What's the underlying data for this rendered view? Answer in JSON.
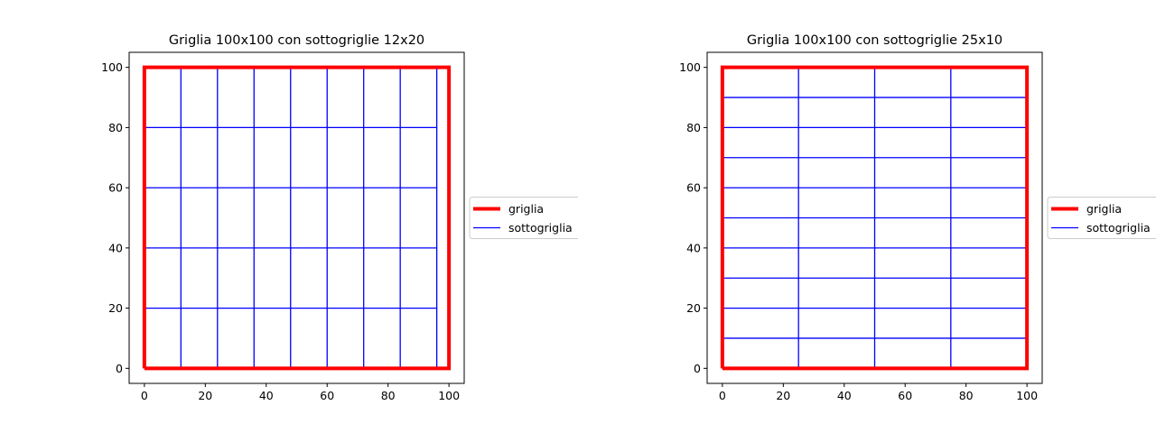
{
  "chart_data": [
    {
      "type": "line",
      "title": "Griglia 100x100 con sottogriglie 12x20",
      "xlim": [
        -5,
        105
      ],
      "ylim": [
        -5,
        105
      ],
      "xticks": [
        0,
        20,
        40,
        60,
        80,
        100
      ],
      "yticks": [
        0,
        20,
        40,
        60,
        80,
        100
      ],
      "grid": false,
      "legend_position": "center-right, outside",
      "series": [
        {
          "name": "griglia",
          "color": "#ff0000",
          "shape": "rectangle",
          "corners": [
            [
              0,
              0
            ],
            [
              100,
              0
            ],
            [
              100,
              100
            ],
            [
              0,
              100
            ]
          ]
        },
        {
          "name": "sottogriglia",
          "color": "#0000ff",
          "vertical_lines_x": [
            0,
            12,
            24,
            36,
            48,
            60,
            72,
            84,
            96
          ],
          "horizontal_lines_y": [
            0,
            20,
            40,
            60,
            80,
            100
          ],
          "x_extent": [
            0,
            96
          ],
          "y_extent": [
            0,
            100
          ]
        }
      ]
    },
    {
      "type": "line",
      "title": "Griglia 100x100 con sottogriglie 25x10",
      "xlim": [
        -5,
        105
      ],
      "ylim": [
        -5,
        105
      ],
      "xticks": [
        0,
        20,
        40,
        60,
        80,
        100
      ],
      "yticks": [
        0,
        20,
        40,
        60,
        80,
        100
      ],
      "grid": false,
      "legend_position": "center-right, outside",
      "series": [
        {
          "name": "griglia",
          "color": "#ff0000",
          "shape": "rectangle",
          "corners": [
            [
              0,
              0
            ],
            [
              100,
              0
            ],
            [
              100,
              100
            ],
            [
              0,
              100
            ]
          ]
        },
        {
          "name": "sottogriglia",
          "color": "#0000ff",
          "vertical_lines_x": [
            0,
            25,
            50,
            75,
            100
          ],
          "horizontal_lines_y": [
            0,
            10,
            20,
            30,
            40,
            50,
            60,
            70,
            80,
            90,
            100
          ],
          "x_extent": [
            0,
            100
          ],
          "y_extent": [
            0,
            100
          ]
        }
      ]
    }
  ]
}
